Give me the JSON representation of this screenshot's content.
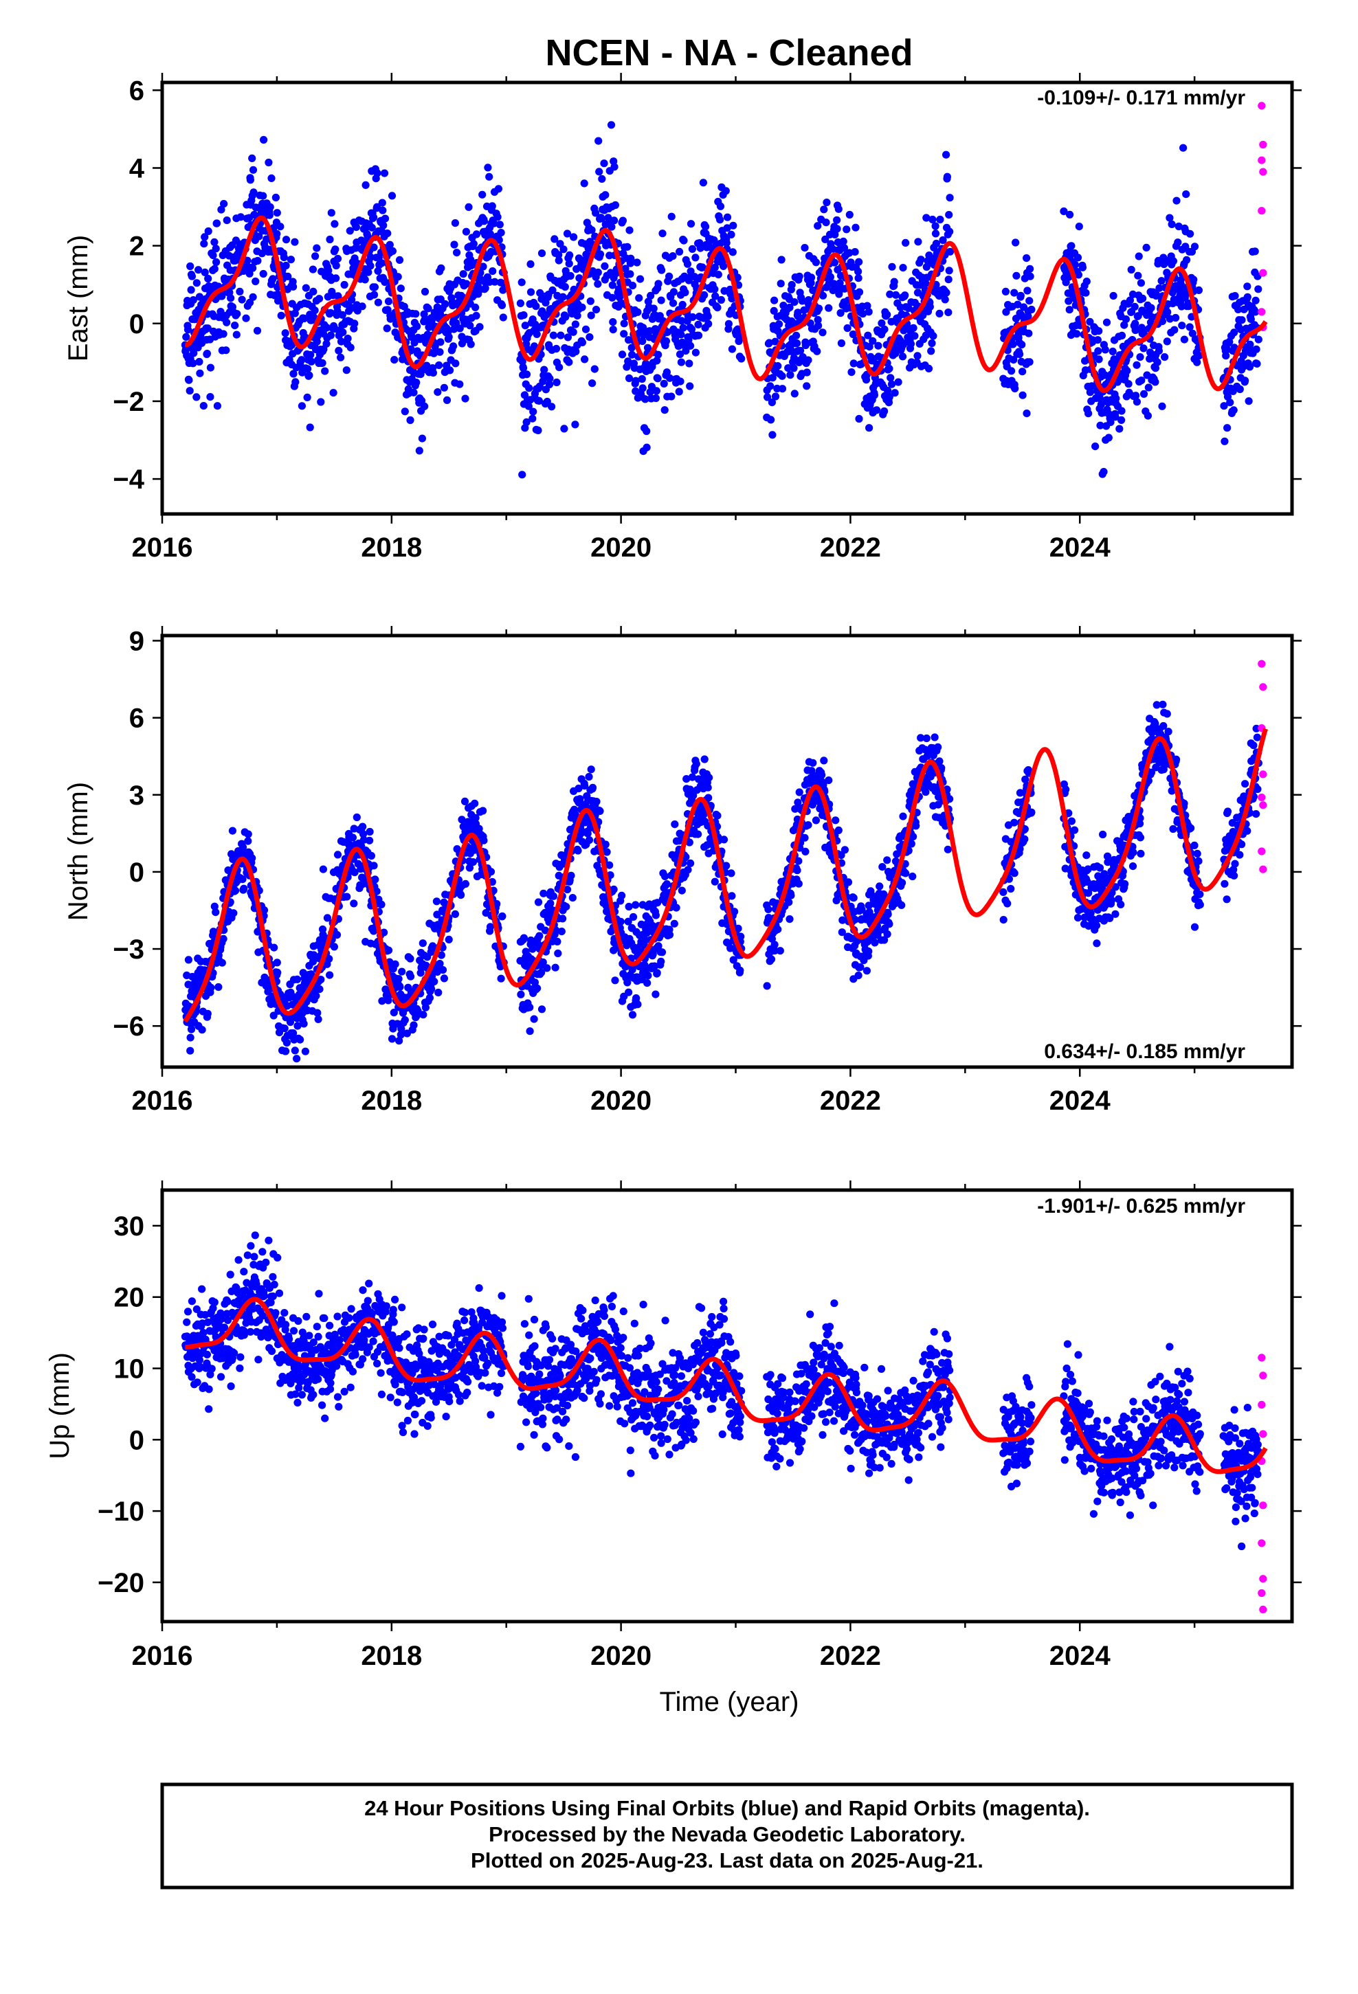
{
  "title": "NCEN  - NA - Cleaned",
  "colors": {
    "final_orbits": "#0000ff",
    "rapid_orbits": "#ff00ff",
    "model": "#ff0000",
    "frame": "#000000"
  },
  "footer": {
    "line1": "24 Hour Positions Using Final Orbits (blue) and Rapid Orbits (magenta).",
    "line2": "Processed by the Nevada Geodetic Laboratory.",
    "line3": "Plotted on 2025-Aug-23. Last data on 2025-Aug-21."
  },
  "chart_data": [
    {
      "type": "scatter",
      "component": "east",
      "ylabel": "East (mm)",
      "xlabel": "",
      "rate": "-0.109+/- 0.171 mm/yr",
      "rate_position": "top-right",
      "xlim": [
        2016.0,
        2025.85
      ],
      "ylim": [
        -4.9,
        6.2
      ],
      "xticks": [
        2016,
        2018,
        2020,
        2022,
        2024
      ],
      "yticks": [
        -4,
        -2,
        0,
        2,
        4,
        6
      ],
      "xtick_labels": [
        "2016",
        "2018",
        "2020",
        "2022",
        "2024"
      ],
      "ytick_labels": [
        "−4",
        "−2",
        "0",
        "2",
        "4",
        "6"
      ],
      "model": {
        "start": 2016.2,
        "end": 2025.62,
        "offset": 0.4,
        "trend": -0.109,
        "amp1": 1.3,
        "phase1": 0.55,
        "amp2": 0.55,
        "phase2": 0.28,
        "extra_amp": 0.25,
        "noise": 1.05,
        "noise_alt": 1.3
      },
      "rapid_values": [
        5.6,
        4.6,
        4.2,
        3.9,
        2.9,
        1.3,
        0.3,
        -0.1
      ]
    },
    {
      "type": "scatter",
      "component": "north",
      "ylabel": "North (mm)",
      "xlabel": "",
      "rate": "0.634+/- 0.185 mm/yr",
      "rate_position": "bottom-right",
      "xlim": [
        2016.0,
        2025.85
      ],
      "ylim": [
        -7.6,
        9.2
      ],
      "xticks": [
        2016,
        2018,
        2020,
        2022,
        2024
      ],
      "yticks": [
        -6,
        -3,
        0,
        3,
        6,
        9
      ],
      "xtick_labels": [
        "2016",
        "2018",
        "2020",
        "2022",
        "2024"
      ],
      "ytick_labels": [
        "−6",
        "−3",
        "0",
        "3",
        "6",
        "9"
      ],
      "model": {
        "start": 2016.2,
        "end": 2025.62,
        "offset": -0.8,
        "trend": 0.634,
        "amp1": 3.0,
        "phase1": 0.42,
        "amp2": 0.6,
        "phase2": 0.1,
        "extra_amp": 0.2,
        "noise": 0.95,
        "noise_alt": 1.1
      },
      "rapid_values": [
        8.1,
        7.2,
        5.6,
        3.8,
        2.9,
        2.6,
        0.8,
        0.1
      ]
    },
    {
      "type": "scatter",
      "component": "up",
      "ylabel": "Up (mm)",
      "xlabel": "Time (year)",
      "rate": "-1.901+/- 0.625 mm/yr",
      "rate_position": "top-right",
      "xlim": [
        2016.0,
        2025.85
      ],
      "ylim": [
        -25.5,
        35.0
      ],
      "xticks": [
        2016,
        2018,
        2020,
        2022,
        2024
      ],
      "yticks": [
        -20,
        -10,
        0,
        10,
        20,
        30
      ],
      "xtick_labels": [
        "2016",
        "2018",
        "2020",
        "2022",
        "2024"
      ],
      "ytick_labels": [
        "−20",
        "−10",
        "0",
        "10",
        "20",
        "30"
      ],
      "model": {
        "start": 2016.2,
        "end": 2025.62,
        "offset": 7.5,
        "trend": -1.901,
        "amp1": 3.6,
        "phase1": 0.55,
        "amp2": 1.0,
        "phase2": 0.2,
        "extra_amp": 0.6,
        "noise": 4.2,
        "noise_alt": 5.0
      },
      "rapid_values": [
        11.5,
        9.0,
        4.9,
        0.8,
        -3.0,
        -9.2,
        -14.5,
        -19.5,
        -21.5,
        -23.8
      ]
    }
  ]
}
